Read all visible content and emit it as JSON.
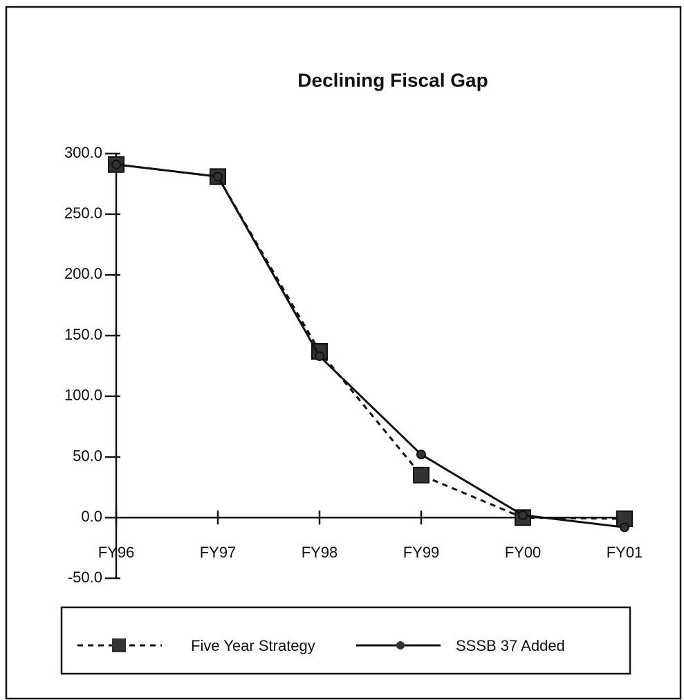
{
  "chart_data": {
    "type": "line",
    "title": "Declining Fiscal Gap",
    "categories": [
      "FY96",
      "FY97",
      "FY98",
      "FY99",
      "FY00",
      "FY01"
    ],
    "series": [
      {
        "name": "Five Year Strategy",
        "color": "#111111",
        "values": [
          291,
          281,
          137,
          35,
          0,
          -1
        ]
      },
      {
        "name": "SSSB 37 Added",
        "color": "#111111",
        "values": [
          291,
          281,
          133,
          52,
          2,
          -8
        ]
      }
    ],
    "ylim": [
      -50,
      300
    ],
    "yticks": [
      {
        "value": -50,
        "label": "-50.0"
      },
      {
        "value": 0,
        "label": "0.0"
      },
      {
        "value": 50,
        "label": "50.0"
      },
      {
        "value": 100,
        "label": "100.0"
      },
      {
        "value": 150,
        "label": "150.0"
      },
      {
        "value": 200,
        "label": "200.0"
      },
      {
        "value": 250,
        "label": "250.0"
      },
      {
        "value": 300,
        "label": "300.0"
      }
    ],
    "grid": false
  }
}
